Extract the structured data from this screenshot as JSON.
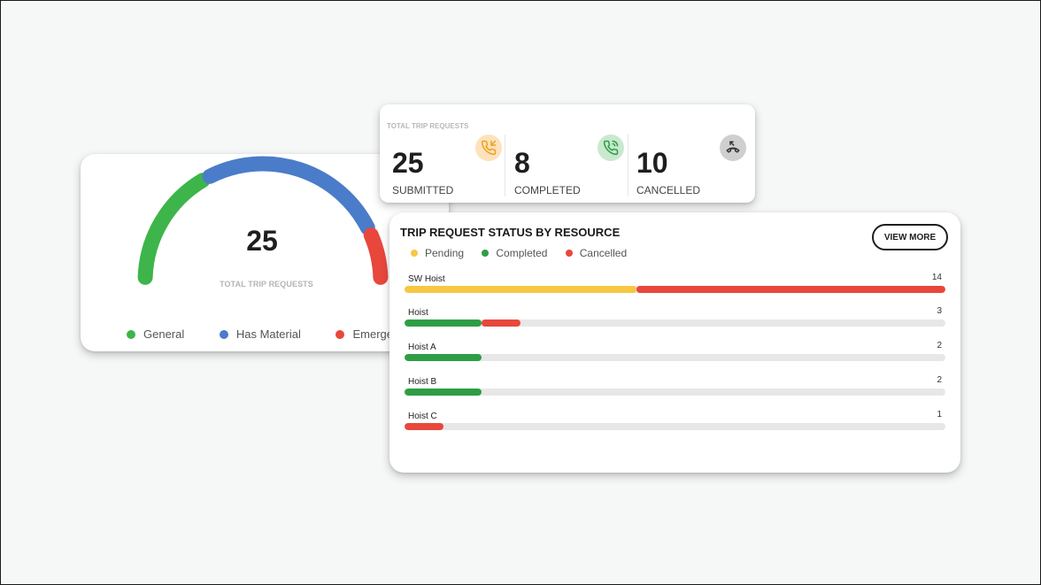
{
  "colors": {
    "general": "#3db54a",
    "has_material": "#4a7cc9",
    "emergency": "#e8473c",
    "pending": "#f7c744",
    "completed": "#2e9e44",
    "cancelled": "#e8473c",
    "submitted_icon_bg": "#fde3bc",
    "submitted_icon": "#f0a01e",
    "completed_icon_bg": "#c9e9cf",
    "completed_icon": "#2e9e44",
    "cancelled_icon_bg": "#cfcfcf",
    "cancelled_icon": "#333333"
  },
  "gauge": {
    "total": "25",
    "caption": "TOTAL TRIP REQUESTS",
    "segments": [
      {
        "key": "general",
        "fraction": 0.34
      },
      {
        "key": "has_material",
        "fraction": 0.52
      },
      {
        "key": "emergency",
        "fraction": 0.14
      }
    ],
    "legend": [
      {
        "label": "General",
        "color": "#3db54a"
      },
      {
        "label": "Has Material",
        "color": "#4a7cc9"
      },
      {
        "label": "Emergency",
        "color": "#e8473c"
      }
    ]
  },
  "summary": {
    "title": "TOTAL TRIP REQUESTS",
    "stats": [
      {
        "value": "25",
        "label": "SUBMITTED",
        "icon": "phone-incoming-icon"
      },
      {
        "value": "8",
        "label": "COMPLETED",
        "icon": "phone-call-icon"
      },
      {
        "value": "10",
        "label": "CANCELLED",
        "icon": "phone-missed-icon"
      }
    ]
  },
  "status": {
    "title": "TRIP REQUEST STATUS BY RESOURCE",
    "view_more": "VIEW MORE",
    "legend": [
      {
        "label": "Pending",
        "color": "#f7c744"
      },
      {
        "label": "Completed",
        "color": "#2e9e44"
      },
      {
        "label": "Cancelled",
        "color": "#e8473c"
      }
    ],
    "max": 14,
    "resources": [
      {
        "name": "SW Hoist",
        "count": "14",
        "pending": 6,
        "completed": 0,
        "cancelled": 8
      },
      {
        "name": "Hoist",
        "count": "3",
        "pending": 0,
        "completed": 2,
        "cancelled": 1
      },
      {
        "name": "Hoist A",
        "count": "2",
        "pending": 0,
        "completed": 2,
        "cancelled": 0
      },
      {
        "name": "Hoist B",
        "count": "2",
        "pending": 0,
        "completed": 2,
        "cancelled": 0
      },
      {
        "name": "Hoist C",
        "count": "1",
        "pending": 0,
        "completed": 0,
        "cancelled": 1
      }
    ]
  }
}
